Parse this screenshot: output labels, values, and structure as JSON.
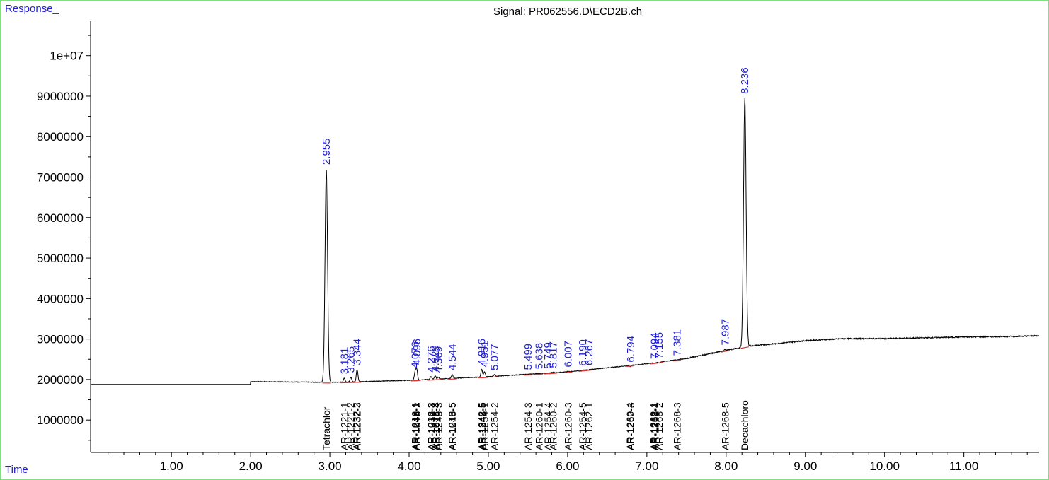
{
  "chart_data": {
    "type": "line",
    "title": "Signal: PR062556.D\\ECD2B.ch",
    "ylabel": "Response_",
    "xlabel": "Time",
    "xlim": [
      -0.02,
      11.95
    ],
    "ylim": [
      200000,
      10850000
    ],
    "x_ticks": [
      1.0,
      2.0,
      3.0,
      4.0,
      5.0,
      6.0,
      7.0,
      8.0,
      9.0,
      10.0,
      11.0
    ],
    "x_tick_labels": [
      "1.00",
      "2.00",
      "3.00",
      "4.00",
      "5.00",
      "6.00",
      "7.00",
      "8.00",
      "9.00",
      "10.00",
      "11.00"
    ],
    "y_ticks": [
      1000000,
      2000000,
      3000000,
      4000000,
      5000000,
      6000000,
      7000000,
      8000000,
      9000000,
      10000000
    ],
    "y_tick_labels": [
      "1000000",
      "2000000",
      "3000000",
      "4000000",
      "5000000",
      "6000000",
      "7000000",
      "8000000",
      "9000000",
      "1e+07"
    ],
    "baseline": [
      [
        -0.02,
        1880000
      ],
      [
        2.0,
        1880000
      ],
      [
        2.0,
        1950000
      ],
      [
        3.0,
        1930000
      ],
      [
        4.0,
        1980000
      ],
      [
        5.0,
        2070000
      ],
      [
        6.0,
        2190000
      ],
      [
        7.0,
        2390000
      ],
      [
        7.5,
        2520000
      ],
      [
        8.0,
        2720000
      ],
      [
        8.3,
        2830000
      ],
      [
        8.6,
        2880000
      ],
      [
        9.0,
        2960000
      ],
      [
        9.5,
        3010000
      ],
      [
        10.0,
        3010000
      ],
      [
        10.5,
        3030000
      ],
      [
        11.0,
        3050000
      ],
      [
        11.5,
        3060000
      ],
      [
        11.95,
        3080000
      ]
    ],
    "peaks": [
      {
        "rt": 2.955,
        "height": 7200000,
        "label": "2.955"
      },
      {
        "rt": 3.181,
        "height": 2030000,
        "label": "3.181"
      },
      {
        "rt": 3.265,
        "height": 2060000,
        "label": "3.265"
      },
      {
        "rt": 3.344,
        "height": 2250000,
        "label": "3.344"
      },
      {
        "rt": 4.076,
        "height": 2180000,
        "label": "4.076"
      },
      {
        "rt": 4.096,
        "height": 2250000,
        "label": "4.096"
      },
      {
        "rt": 4.276,
        "height": 2070000,
        "label": "4.276"
      },
      {
        "rt": 4.329,
        "height": 2090000,
        "label": "4.329"
      },
      {
        "rt": 4.369,
        "height": 2060000,
        "label": "4.369"
      },
      {
        "rt": 4.544,
        "height": 2120000,
        "label": "4.544"
      },
      {
        "rt": 4.916,
        "height": 2250000,
        "label": "4.916"
      },
      {
        "rt": 4.951,
        "height": 2200000,
        "label": "4.951"
      },
      {
        "rt": 5.077,
        "height": 2120000,
        "label": "5.077"
      },
      {
        "rt": 5.499,
        "height": 2130000,
        "label": "5.499"
      },
      {
        "rt": 5.638,
        "height": 2150000,
        "label": "5.638"
      },
      {
        "rt": 5.749,
        "height": 2160000,
        "label": "5.749"
      },
      {
        "rt": 5.817,
        "height": 2180000,
        "label": "5.817"
      },
      {
        "rt": 6.007,
        "height": 2200000,
        "label": "6.007"
      },
      {
        "rt": 6.19,
        "height": 2230000,
        "label": "6.190"
      },
      {
        "rt": 6.267,
        "height": 2240000,
        "label": "6.267"
      },
      {
        "rt": 6.794,
        "height": 2320000,
        "label": "6.794"
      },
      {
        "rt": 7.094,
        "height": 2400000,
        "label": "7.094"
      },
      {
        "rt": 7.155,
        "height": 2410000,
        "label": "7.155"
      },
      {
        "rt": 7.381,
        "height": 2480000,
        "label": "7.381"
      },
      {
        "rt": 7.987,
        "height": 2740000,
        "label": "7.987"
      },
      {
        "rt": 8.236,
        "height": 8950000,
        "label": "8.236"
      }
    ],
    "compounds": [
      {
        "rt": 2.955,
        "name": "Tetrachlor"
      },
      {
        "rt": 3.181,
        "name": "AR-1221-1"
      },
      {
        "rt": 3.265,
        "name": "AR-1221-2"
      },
      {
        "rt": 3.335,
        "name": "AR-1232-2"
      },
      {
        "rt": 3.344,
        "name": "AR-1232-3"
      },
      {
        "rt": 4.076,
        "name": "AR-1016-1"
      },
      {
        "rt": 4.08,
        "name": "AR-1242-1"
      },
      {
        "rt": 4.086,
        "name": "AR-1248-1"
      },
      {
        "rt": 4.096,
        "name": "AR-1016-2"
      },
      {
        "rt": 4.276,
        "name": "AR-1016-3"
      },
      {
        "rt": 4.28,
        "name": "AR-1232-3"
      },
      {
        "rt": 4.329,
        "name": "AR-1242-3"
      },
      {
        "rt": 4.34,
        "name": "AR-1016-4"
      },
      {
        "rt": 4.369,
        "name": "AR-1248-3"
      },
      {
        "rt": 4.54,
        "name": "AR-1016-5"
      },
      {
        "rt": 4.544,
        "name": "AR-1248-5"
      },
      {
        "rt": 4.916,
        "name": "AR-1242-5"
      },
      {
        "rt": 4.925,
        "name": "AR-1248-5"
      },
      {
        "rt": 4.951,
        "name": "AR-1254-1"
      },
      {
        "rt": 5.077,
        "name": "AR-1254-2"
      },
      {
        "rt": 5.499,
        "name": "AR-1254-3"
      },
      {
        "rt": 5.638,
        "name": "AR-1260-1"
      },
      {
        "rt": 5.749,
        "name": "AR-1254-4"
      },
      {
        "rt": 5.817,
        "name": "AR-1260-2"
      },
      {
        "rt": 6.007,
        "name": "AR-1260-3"
      },
      {
        "rt": 6.19,
        "name": "AR-1254-5"
      },
      {
        "rt": 6.267,
        "name": "AR-1262-1"
      },
      {
        "rt": 6.785,
        "name": "AR-1260-4"
      },
      {
        "rt": 6.794,
        "name": "AR-1262-3"
      },
      {
        "rt": 7.085,
        "name": "AR-1262-1"
      },
      {
        "rt": 7.094,
        "name": "AR-1268-1"
      },
      {
        "rt": 7.103,
        "name": "AR-1262-4"
      },
      {
        "rt": 7.155,
        "name": "AR-1268-2"
      },
      {
        "rt": 7.381,
        "name": "AR-1268-3"
      },
      {
        "rt": 7.987,
        "name": "AR-1268-5"
      },
      {
        "rt": 8.236,
        "name": "Decachloro"
      }
    ],
    "colors": {
      "trace": "#000000",
      "integration": "#e03030",
      "peak_label": "#1f1fd6",
      "frame": "#7ee07e",
      "axis": "#000000"
    },
    "grid": false
  }
}
